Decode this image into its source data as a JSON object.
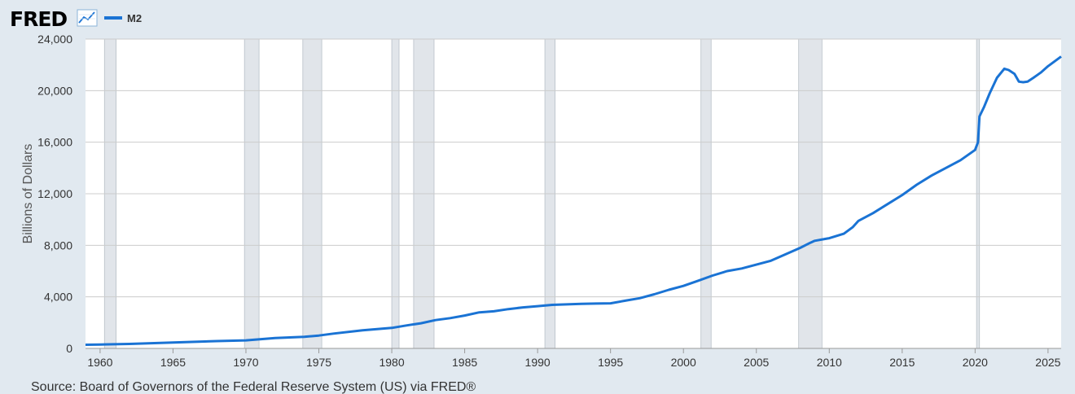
{
  "header": {
    "logo_text": "FRED",
    "logo_icon": "line-chart-icon",
    "legend_series": "M2"
  },
  "source_text": "Source: Board of Governors of the Federal Reserve System (US) via FRED®",
  "colors": {
    "background": "#e1e9f0",
    "plot_background": "#ffffff",
    "series": "#1a73d4",
    "recession": "#e1e5ea",
    "grid": "#cccccc"
  },
  "chart_data": {
    "type": "line",
    "title": "",
    "xlabel": "",
    "ylabel": "Billions of Dollars",
    "xlim": [
      1959.0,
      2025.9
    ],
    "ylim": [
      0,
      24000
    ],
    "grid": true,
    "x_ticks": [
      1960,
      1965,
      1970,
      1975,
      1980,
      1985,
      1990,
      1995,
      2000,
      2005,
      2010,
      2015,
      2020,
      2025
    ],
    "x_tick_labels": [
      "1960",
      "1965",
      "1970",
      "1975",
      "1980",
      "1985",
      "1990",
      "1995",
      "2000",
      "2005",
      "2010",
      "2015",
      "2020",
      "2025"
    ],
    "y_ticks": [
      0,
      4000,
      8000,
      12000,
      16000,
      20000,
      24000
    ],
    "y_tick_labels": [
      "0",
      "4,000",
      "8,000",
      "12,000",
      "16,000",
      "20,000",
      "24,000"
    ],
    "recessions": [
      [
        1960.3,
        1961.1
      ],
      [
        1969.9,
        1970.9
      ],
      [
        1973.9,
        1975.2
      ],
      [
        1980.0,
        1980.5
      ],
      [
        1981.5,
        1982.9
      ],
      [
        1990.5,
        1991.2
      ],
      [
        2001.2,
        2001.9
      ],
      [
        2007.9,
        2009.5
      ],
      [
        2020.1,
        2020.3
      ]
    ],
    "series": [
      {
        "name": "M2",
        "x": [
          1959.0,
          1960,
          1962,
          1965,
          1968,
          1970,
          1972,
          1974,
          1975,
          1976,
          1978,
          1980,
          1981,
          1982,
          1983,
          1984,
          1985,
          1986,
          1987,
          1988,
          1989,
          1990,
          1991,
          1992,
          1993,
          1994,
          1995,
          1996,
          1997,
          1998,
          1999,
          2000,
          2001,
          2002,
          2003,
          2004,
          2005,
          2006,
          2007,
          2008,
          2008.7,
          2009,
          2010,
          2011,
          2011.6,
          2012,
          2013,
          2014,
          2015,
          2016,
          2017,
          2018,
          2019,
          2020.0,
          2020.2,
          2020.3,
          2020.6,
          2021,
          2021.5,
          2022.0,
          2022.3,
          2022.7,
          2023.0,
          2023.3,
          2023.6,
          2024,
          2024.5,
          2025,
          2025.9
        ],
        "values": [
          286,
          304,
          345,
          460,
          570,
          626,
          800,
          900,
          1000,
          1150,
          1400,
          1590,
          1780,
          1950,
          2200,
          2350,
          2550,
          2800,
          2880,
          3050,
          3180,
          3280,
          3380,
          3420,
          3460,
          3480,
          3500,
          3700,
          3900,
          4200,
          4550,
          4850,
          5250,
          5650,
          6000,
          6200,
          6500,
          6800,
          7300,
          7800,
          8200,
          8350,
          8550,
          8900,
          9400,
          9900,
          10500,
          11200,
          11900,
          12700,
          13400,
          14000,
          14600,
          15400,
          16000,
          18000,
          18700,
          19800,
          21000,
          21700,
          21600,
          21300,
          20700,
          20650,
          20700,
          21000,
          21400,
          21900,
          22650
        ]
      }
    ]
  }
}
